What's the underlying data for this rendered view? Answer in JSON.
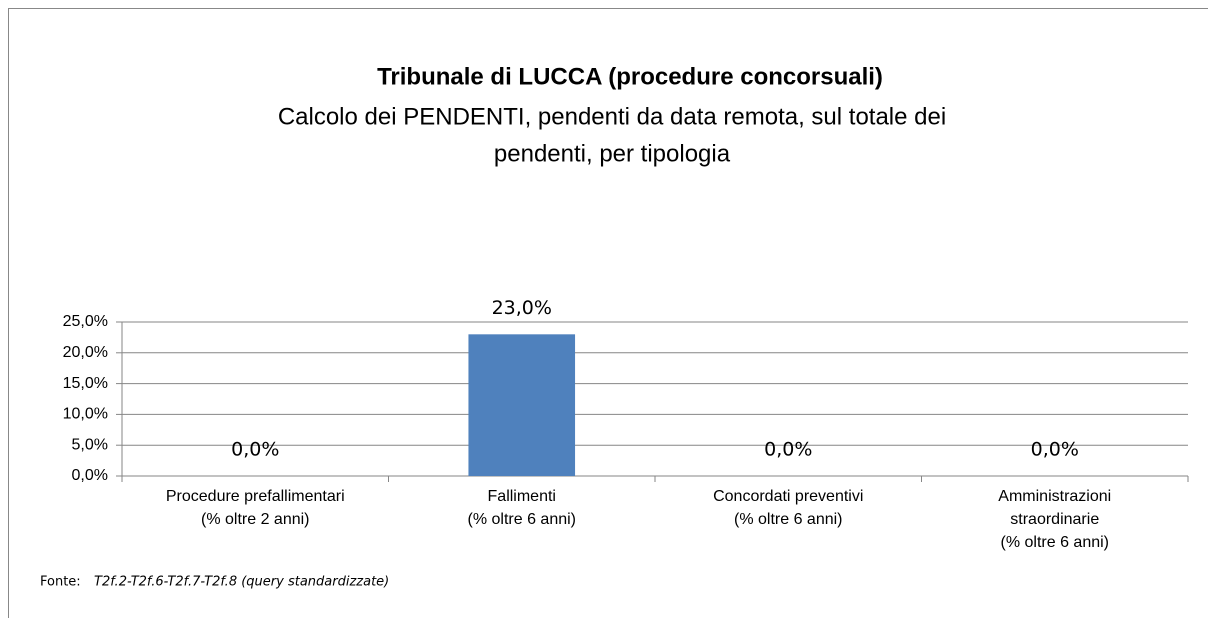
{
  "chart_data": {
    "type": "bar",
    "title": "Tribunale di LUCCA (procedure concorsuali)",
    "subtitle": [
      "Calcolo dei PENDENTI, pendenti da data remota, sul totale dei",
      "pendenti, per tipologia"
    ],
    "categories": [
      [
        "Procedure prefallimentari",
        "(% oltre 2 anni)"
      ],
      [
        "Fallimenti",
        "(% oltre 6 anni)"
      ],
      [
        "Concordati preventivi",
        "(% oltre 6 anni)"
      ],
      [
        "Amministrazioni",
        "straordinarie",
        "(% oltre 6 anni)"
      ]
    ],
    "values": [
      0,
      23,
      0,
      0
    ],
    "value_labels": [
      "0,0%",
      "23,0%",
      "0,0%",
      "0,0%"
    ],
    "color": "#4f81bd",
    "ylim": [
      0,
      25
    ],
    "yticks": [
      {
        "value": 0,
        "label": "0,0%"
      },
      {
        "value": 5,
        "label": "5,0%"
      },
      {
        "value": 10,
        "label": "10,0%"
      },
      {
        "value": 15,
        "label": "15,0%"
      },
      {
        "value": 20,
        "label": "20,0%"
      },
      {
        "value": 25,
        "label": "25,0%"
      }
    ],
    "grid": true,
    "source_label": "Fonte:",
    "source": "T2f.2-T2f.6-T2f.7-T2f.8 (query standardizzate)"
  }
}
